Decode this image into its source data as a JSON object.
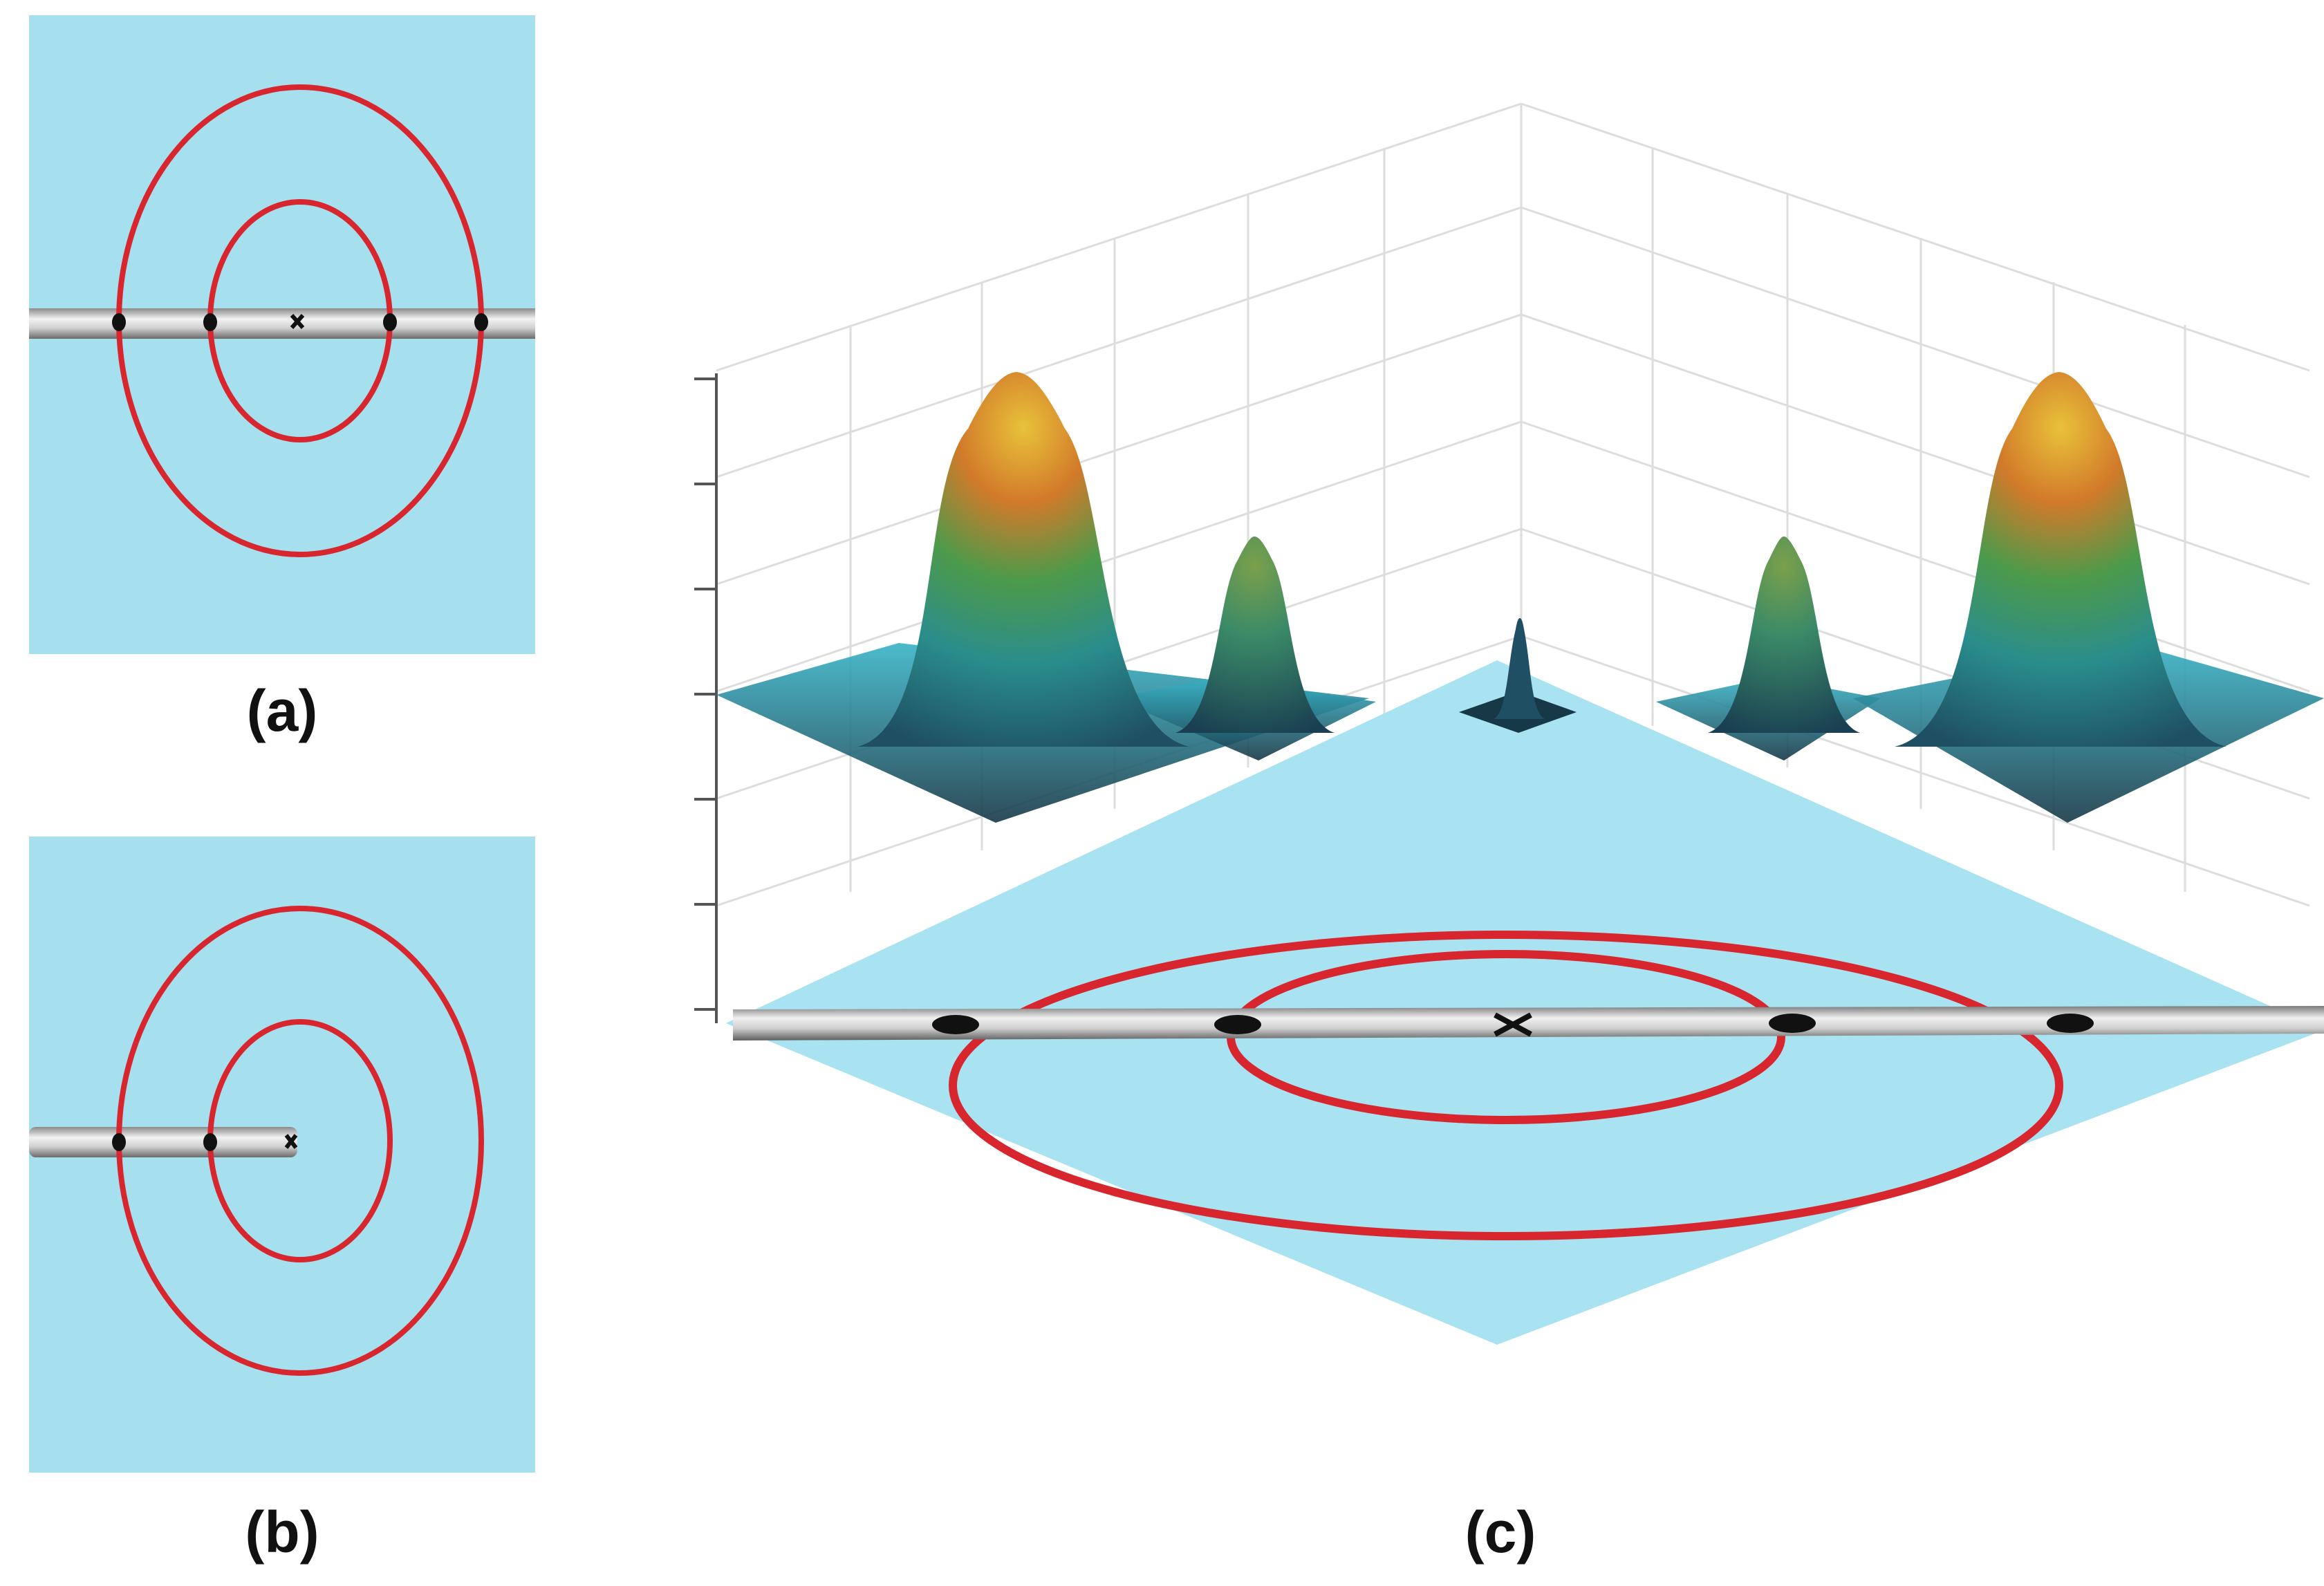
{
  "captions": {
    "a": "(a)",
    "b": "(b)",
    "c": "(c)"
  },
  "colors": {
    "background": "#a6dfee",
    "ring": "#d8262e",
    "rod": "#c8c8c8",
    "marker": "#111111",
    "grid": "#d9d9d9"
  },
  "icons": [
    "cross-marker-icon",
    "dot-marker-icon"
  ]
}
